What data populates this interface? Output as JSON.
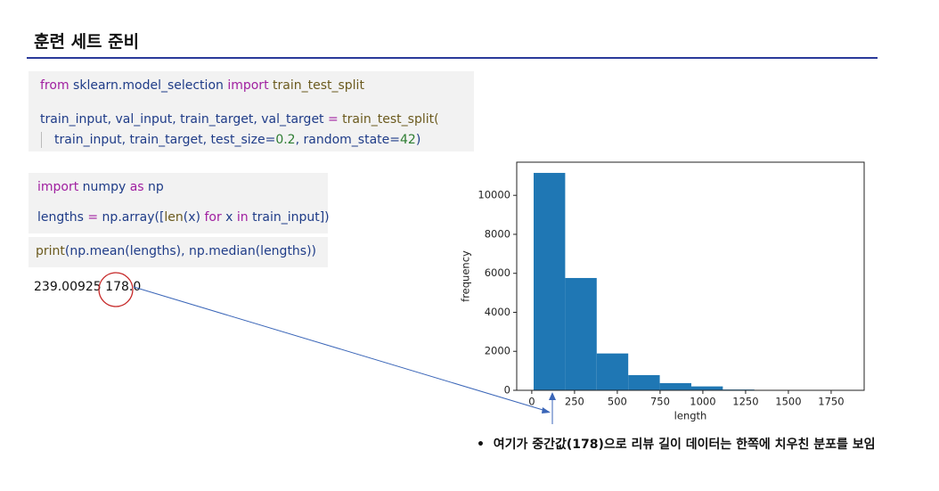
{
  "header": {
    "title": "훈련 세트 준비"
  },
  "code_blocks": [
    {
      "lines": [
        [
          {
            "text": "from",
            "color": "#a020a0"
          },
          {
            "text": " sklearn.model_selection ",
            "color": "#1f3c88"
          },
          {
            "text": "import",
            "color": "#a020a0"
          },
          {
            "text": " train_test_split",
            "color": "#6b5a1e"
          }
        ],
        [
          {
            "text": "train_input, val_input, train_target, val_target ",
            "color": "#1f3c88"
          },
          {
            "text": "=",
            "color": "#a020a0"
          },
          {
            "text": " train_test_split(",
            "color": "#6b5a1e"
          }
        ],
        [
          {
            "text": "train_input, train_target, test_size=",
            "color": "#1f3c88"
          },
          {
            "text": "0.2",
            "color": "#2e7d32"
          },
          {
            "text": ", random_state=",
            "color": "#1f3c88"
          },
          {
            "text": "42",
            "color": "#2e7d32"
          },
          {
            "text": ")",
            "color": "#1f3c88"
          }
        ]
      ]
    },
    {
      "lines": [
        [
          {
            "text": "import",
            "color": "#a020a0"
          },
          {
            "text": " numpy ",
            "color": "#1f3c88"
          },
          {
            "text": "as",
            "color": "#a020a0"
          },
          {
            "text": " np",
            "color": "#1f3c88"
          }
        ],
        [
          {
            "text": "lengths ",
            "color": "#1f3c88"
          },
          {
            "text": "=",
            "color": "#a020a0"
          },
          {
            "text": " np.array([",
            "color": "#1f3c88"
          },
          {
            "text": "len",
            "color": "#6b5a1e"
          },
          {
            "text": "(x) ",
            "color": "#1f3c88"
          },
          {
            "text": "for",
            "color": "#a020a0"
          },
          {
            "text": " x ",
            "color": "#1f3c88"
          },
          {
            "text": "in",
            "color": "#a020a0"
          },
          {
            "text": " train_input])",
            "color": "#1f3c88"
          }
        ]
      ]
    },
    {
      "lines": [
        [
          {
            "text": "print",
            "color": "#6b5a1e"
          },
          {
            "text": "(np.mean(lengths), np.median(lengths))",
            "color": "#1f3c88"
          }
        ]
      ]
    }
  ],
  "output": "239.00925 178.0",
  "annotation": "여기가 중간값(178)으로 리뷰 길이 데이터는 한쪽에 치우친 분포를 보임",
  "chart_data": {
    "type": "histogram",
    "xlabel": "length",
    "ylabel": "frequency",
    "color": "#1f77b4",
    "bins": [
      11,
      195.3,
      379.6,
      563.9,
      748.2,
      932.5,
      1116.8,
      1301.1,
      1485.4,
      1669.7,
      1854
    ],
    "values": [
      11150,
      5760,
      1890,
      780,
      370,
      200,
      40,
      20,
      10,
      10
    ],
    "xlim": [
      -88,
      1943
    ],
    "ylim": [
      0,
      11700
    ],
    "xticks": [
      0,
      250,
      500,
      750,
      1000,
      1250,
      1500,
      1750
    ],
    "yticks": [
      0,
      2000,
      4000,
      6000,
      8000,
      10000
    ]
  }
}
